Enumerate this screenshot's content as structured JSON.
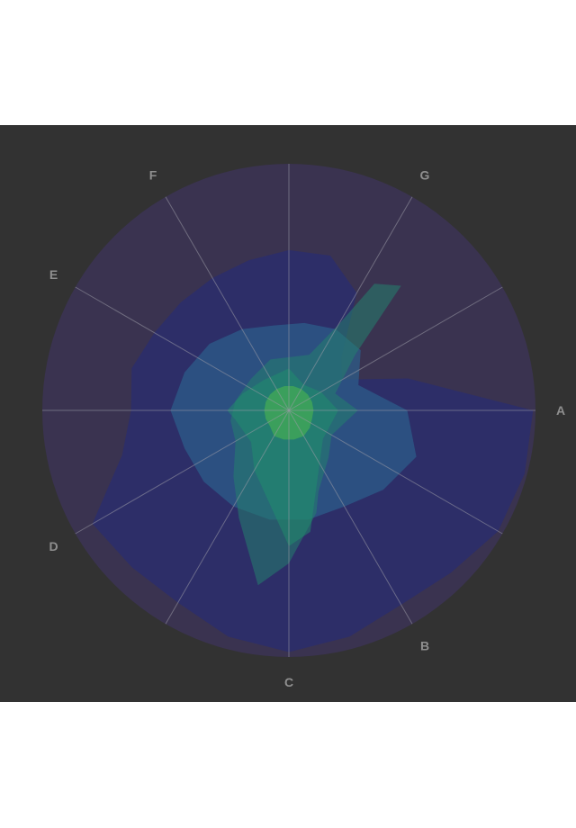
{
  "page": {
    "background": "#ffffff",
    "panel_background": "#323232"
  },
  "chart_data": {
    "type": "radar",
    "title": "",
    "axes": [
      "A",
      "B",
      "C",
      "D",
      "E",
      "F",
      "G"
    ],
    "axis_angle_degrees": [
      0,
      60,
      90,
      150,
      210,
      240,
      300
    ],
    "grid": true,
    "grid_color": "#9a9aa6",
    "label_color": "#8f8f8f",
    "outer_circle_color": "#3a3350",
    "radial_max": 1.0,
    "layers": [
      {
        "color": "#2c2d6a",
        "opacity": 0.9,
        "points": [
          [
            0,
            0.99
          ],
          [
            15,
            0.99
          ],
          [
            30,
            0.98
          ],
          [
            45,
            0.93
          ],
          [
            60,
            0.91
          ],
          [
            75,
            0.95
          ],
          [
            90,
            0.98
          ],
          [
            105,
            0.95
          ],
          [
            120,
            0.9
          ],
          [
            135,
            0.9
          ],
          [
            150,
            0.92
          ],
          [
            165,
            0.7
          ],
          [
            180,
            0.64
          ],
          [
            195,
            0.66
          ],
          [
            210,
            0.63
          ],
          [
            225,
            0.62
          ],
          [
            240,
            0.62
          ],
          [
            255,
            0.63
          ],
          [
            270,
            0.65
          ],
          [
            285,
            0.65
          ],
          [
            300,
            0.55
          ],
          [
            315,
            0.3
          ],
          [
            330,
            0.25
          ],
          [
            345,
            0.5
          ]
        ]
      },
      {
        "color": "#2c5e8a",
        "opacity": 0.72,
        "points": [
          [
            0,
            0.48
          ],
          [
            20,
            0.55
          ],
          [
            40,
            0.5
          ],
          [
            60,
            0.45
          ],
          [
            80,
            0.45
          ],
          [
            100,
            0.45
          ],
          [
            120,
            0.45
          ],
          [
            140,
            0.45
          ],
          [
            160,
            0.45
          ],
          [
            180,
            0.48
          ],
          [
            200,
            0.45
          ],
          [
            220,
            0.42
          ],
          [
            240,
            0.38
          ],
          [
            260,
            0.35
          ],
          [
            280,
            0.36
          ],
          [
            300,
            0.38
          ],
          [
            320,
            0.38
          ],
          [
            340,
            0.3
          ]
        ]
      },
      {
        "color": "#24806d",
        "opacity": 0.55,
        "points": [
          [
            0,
            0.28
          ],
          [
            30,
            0.2
          ],
          [
            50,
            0.25
          ],
          [
            70,
            0.35
          ],
          [
            75,
            0.43
          ],
          [
            90,
            0.62
          ],
          [
            100,
            0.72
          ],
          [
            115,
            0.48
          ],
          [
            130,
            0.35
          ],
          [
            150,
            0.25
          ],
          [
            170,
            0.24
          ],
          [
            190,
            0.22
          ],
          [
            220,
            0.2
          ],
          [
            250,
            0.22
          ],
          [
            290,
            0.24
          ],
          [
            300,
            0.4
          ],
          [
            304,
            0.62
          ],
          [
            312,
            0.68
          ],
          [
            320,
            0.35
          ],
          [
            340,
            0.2
          ]
        ]
      },
      {
        "color": "#1f8f6c",
        "opacity": 0.5,
        "points": [
          [
            0,
            0.2
          ],
          [
            40,
            0.18
          ],
          [
            80,
            0.5
          ],
          [
            90,
            0.55
          ],
          [
            120,
            0.28
          ],
          [
            140,
            0.2
          ],
          [
            170,
            0.22
          ],
          [
            180,
            0.25
          ],
          [
            200,
            0.2
          ],
          [
            230,
            0.16
          ],
          [
            270,
            0.17
          ],
          [
            300,
            0.12
          ],
          [
            330,
            0.15
          ]
        ]
      },
      {
        "color": "#3ea35a",
        "opacity": 0.9,
        "points": [
          [
            0,
            0.1
          ],
          [
            20,
            0.1
          ],
          [
            40,
            0.11
          ],
          [
            60,
            0.12
          ],
          [
            80,
            0.12
          ],
          [
            100,
            0.12
          ],
          [
            120,
            0.12
          ],
          [
            140,
            0.1
          ],
          [
            160,
            0.1
          ],
          [
            180,
            0.1
          ],
          [
            200,
            0.1
          ],
          [
            220,
            0.1
          ],
          [
            240,
            0.1
          ],
          [
            260,
            0.1
          ],
          [
            280,
            0.1
          ],
          [
            300,
            0.1
          ],
          [
            320,
            0.1
          ],
          [
            340,
            0.1
          ]
        ]
      }
    ]
  }
}
